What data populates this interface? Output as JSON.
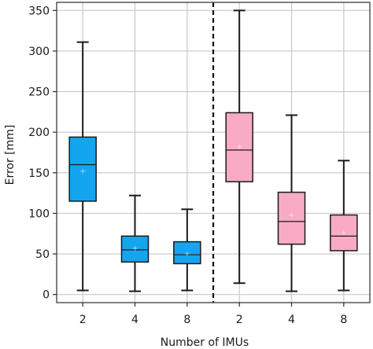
{
  "chart_data": {
    "type": "box",
    "xlabel": "Number of IMUs",
    "ylabel": "Error  [mm]",
    "ylim": [
      -10,
      360
    ],
    "yticks": [
      0,
      50,
      100,
      150,
      200,
      250,
      300,
      350
    ],
    "grid": true,
    "divider": "dashed vertical line between the two groups",
    "groups": [
      {
        "color": "#14A5EF",
        "boxes": [
          {
            "label": "2",
            "min": 5,
            "q1": 115,
            "median": 160,
            "q3": 194,
            "max": 311,
            "mean": 152
          },
          {
            "label": "4",
            "min": 4,
            "q1": 40,
            "median": 55,
            "q3": 72,
            "max": 122,
            "mean": 57
          },
          {
            "label": "8",
            "min": 5,
            "q1": 38,
            "median": 49,
            "q3": 65,
            "max": 105,
            "mean": 50
          }
        ]
      },
      {
        "color": "#F9ABC6",
        "boxes": [
          {
            "label": "2",
            "min": 14,
            "q1": 139,
            "median": 178,
            "q3": 224,
            "max": 350,
            "mean": 182
          },
          {
            "label": "4",
            "min": 4,
            "q1": 62,
            "median": 90,
            "q3": 126,
            "max": 221,
            "mean": 98
          },
          {
            "label": "8",
            "min": 5,
            "q1": 54,
            "median": 72,
            "q3": 98,
            "max": 165,
            "mean": 76
          }
        ]
      }
    ]
  }
}
